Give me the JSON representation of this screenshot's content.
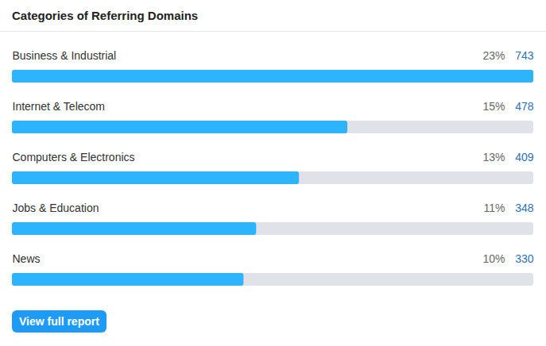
{
  "chart_data": {
    "type": "bar",
    "title": "Categories of Referring Domains",
    "orientation": "horizontal",
    "categories": [
      "Business & Industrial",
      "Internet & Telecom",
      "Computers & Electronics",
      "Jobs & Education",
      "News"
    ],
    "values": [
      743,
      478,
      409,
      348,
      330
    ],
    "percentages": [
      {
        "value": 23,
        "label": "23%"
      },
      {
        "value": 15,
        "label": "15%"
      },
      {
        "value": 13,
        "label": "13%"
      },
      {
        "value": 11,
        "label": "11%"
      },
      {
        "value": 10,
        "label": "10%"
      }
    ],
    "color": "#2db4fc",
    "xlim": [
      0,
      743
    ],
    "grid": false,
    "tick_labels": false,
    "data_labels": true,
    "button": "View full report"
  }
}
